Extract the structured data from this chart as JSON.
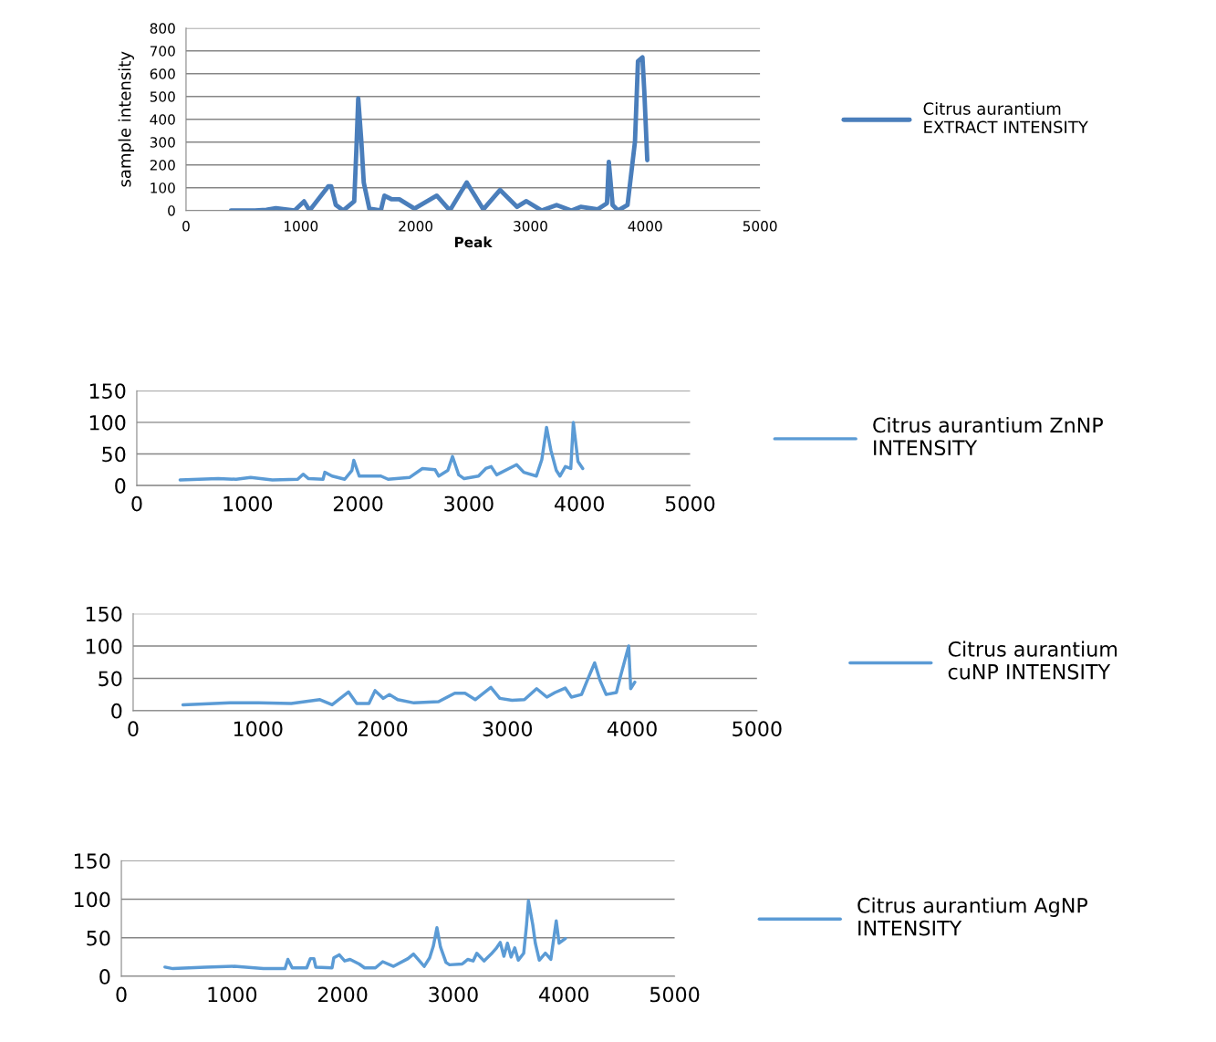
{
  "chart_data": [
    {
      "type": "line",
      "xlabel": "Peak",
      "ylabel": "sample intensity",
      "xlim": [
        0,
        5000
      ],
      "xticks": [
        0,
        1000,
        2000,
        3000,
        4000,
        5000
      ],
      "ylim": [
        0,
        800
      ],
      "yticks": [
        0,
        100,
        200,
        300,
        400,
        500,
        600,
        700,
        800
      ],
      "grid": "y",
      "legend": "right",
      "marker": "none",
      "line_style": "solid",
      "series": [
        {
          "name": "Citrus aurantium\nEXTRACT INTENSITY",
          "color": "#4a7ebb",
          "x": [
            392,
            600,
            700,
            783,
            945,
            1028,
            1076,
            1239,
            1265,
            1304,
            1370,
            1465,
            1484,
            1500,
            1527,
            1548,
            1597,
            1697,
            1728,
            1793,
            1858,
            1990,
            2184,
            2298,
            2445,
            2590,
            2736,
            2884,
            2965,
            3096,
            3228,
            3357,
            3438,
            3585,
            3667,
            3683,
            3716,
            3764,
            3846,
            3911,
            3937,
            3976,
            3992,
            4018
          ],
          "values": [
            0,
            0,
            3,
            10,
            0,
            40,
            0,
            106,
            106,
            25,
            0,
            40,
            270,
            491,
            304,
            123,
            8,
            0,
            65,
            49,
            49,
            8,
            65,
            0,
            123,
            5,
            90,
            16,
            41,
            0,
            24,
            0,
            16,
            5,
            32,
            213,
            24,
            0,
            24,
            303,
            655,
            672,
            524,
            221
          ]
        }
      ]
    },
    {
      "type": "line",
      "xlim": [
        0,
        5000
      ],
      "xticks": [
        0,
        1000,
        2000,
        3000,
        4000,
        5000
      ],
      "ylim": [
        0,
        150
      ],
      "yticks": [
        0,
        50,
        100,
        150
      ],
      "grid": "y",
      "legend": "right",
      "marker": "none",
      "line_style": "solid",
      "series": [
        {
          "name": "Citrus aurantium ZnNP\nINTENSITY",
          "color": "#5b9bd5",
          "x": [
            391,
            735,
            898,
            1029,
            1225,
            1454,
            1503,
            1552,
            1683,
            1699,
            1765,
            1879,
            1944,
            1961,
            2010,
            2206,
            2271,
            2467,
            2581,
            2696,
            2729,
            2811,
            2853,
            2909,
            2958,
            3088,
            3154,
            3203,
            3252,
            3432,
            3497,
            3611,
            3660,
            3703,
            3742,
            3791,
            3824,
            3873,
            3922,
            3945,
            3987,
            4030
          ],
          "values": [
            9,
            11,
            10,
            13,
            9,
            10,
            18,
            11,
            10,
            21,
            15,
            10,
            24,
            40,
            15,
            15,
            10,
            13,
            27,
            25,
            15,
            24,
            46,
            17,
            11,
            15,
            27,
            30,
            17,
            33,
            21,
            15,
            41,
            92,
            56,
            24,
            15,
            30,
            27,
            100,
            38,
            27
          ]
        }
      ]
    },
    {
      "type": "line",
      "xlim": [
        0,
        5000
      ],
      "xticks": [
        0,
        1000,
        2000,
        3000,
        4000,
        5000
      ],
      "ylim": [
        0,
        150
      ],
      "yticks": [
        0,
        50,
        100,
        150
      ],
      "grid": "y",
      "legend": "right",
      "marker": "none",
      "line_style": "solid",
      "series": [
        {
          "name": "Citrus aurantium\ncuNP INTENSITY",
          "color": "#5b9bd5",
          "x": [
            399,
            776,
            1005,
            1267,
            1497,
            1595,
            1726,
            1792,
            1890,
            1939,
            2005,
            2054,
            2120,
            2251,
            2448,
            2578,
            2660,
            2742,
            2867,
            2939,
            3037,
            3136,
            3234,
            3316,
            3381,
            3463,
            3513,
            3594,
            3653,
            3699,
            3742,
            3791,
            3873,
            3906,
            3972,
            3988,
            4021
          ],
          "values": [
            9,
            12,
            12,
            11,
            17,
            9,
            29,
            11,
            11,
            31,
            19,
            25,
            17,
            12,
            14,
            27,
            27,
            17,
            36,
            19,
            16,
            17,
            34,
            21,
            28,
            35,
            21,
            25,
            53,
            74,
            47,
            25,
            28,
            53,
            100,
            34,
            44
          ]
        }
      ]
    },
    {
      "type": "line",
      "xlim": [
        0,
        5000
      ],
      "xticks": [
        0,
        1000,
        2000,
        3000,
        4000,
        5000
      ],
      "ylim": [
        0,
        150
      ],
      "yticks": [
        0,
        50,
        100,
        150
      ],
      "grid": "y",
      "legend": "right",
      "marker": "none",
      "line_style": "solid",
      "series": [
        {
          "name": "Citrus aurantium AgNP\nINTENSITY",
          "color": "#5b9bd5",
          "x": [
            394,
            466,
            760,
            1021,
            1283,
            1479,
            1505,
            1544,
            1675,
            1708,
            1740,
            1757,
            1904,
            1920,
            1969,
            2018,
            2067,
            2149,
            2198,
            2296,
            2362,
            2460,
            2590,
            2640,
            2737,
            2786,
            2819,
            2852,
            2884,
            2934,
            2966,
            3080,
            3130,
            3179,
            3212,
            3277,
            3342,
            3391,
            3424,
            3457,
            3489,
            3522,
            3555,
            3587,
            3636,
            3662,
            3679,
            3718,
            3741,
            3777,
            3832,
            3881,
            3930,
            3956,
            4012
          ],
          "values": [
            12,
            10,
            12,
            13,
            10,
            10,
            22,
            11,
            11,
            23,
            23,
            12,
            11,
            24,
            28,
            20,
            22,
            16,
            11,
            11,
            19,
            13,
            23,
            29,
            13,
            24,
            39,
            63,
            38,
            18,
            15,
            16,
            22,
            20,
            30,
            20,
            29,
            37,
            44,
            26,
            43,
            25,
            37,
            21,
            30,
            67,
            98,
            67,
            43,
            21,
            30,
            22,
            72,
            43,
            49
          ]
        }
      ]
    }
  ]
}
